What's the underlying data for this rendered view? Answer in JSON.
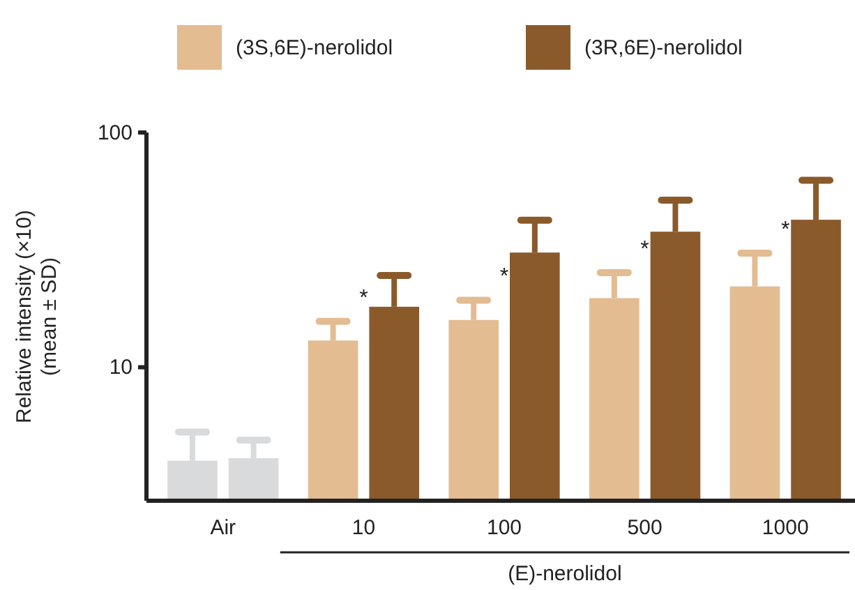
{
  "chart_data": {
    "type": "bar",
    "ylabel": "Relative intensity (×10)\n(mean ± SD)",
    "xlabel": "(E)-nerolidol",
    "log": true,
    "ylim": [
      2.7,
      100
    ],
    "yticks": [
      10,
      100
    ],
    "legend": "top",
    "categories": [
      "Air",
      "10",
      "100",
      "500",
      "1000"
    ],
    "series": [
      {
        "name": "(3S,6E)-nerolidol",
        "color": "#e3bc92",
        "colors": [
          "#d9dadb",
          "#e3bc92",
          "#e3bc92",
          "#e3bc92",
          "#e3bc92"
        ],
        "values": [
          4.0,
          13.0,
          15.9,
          19.7,
          22.1
        ],
        "errors": [
          [
            4.0,
            5.3
          ],
          [
            13.0,
            15.7
          ],
          [
            15.9,
            19.3
          ],
          [
            19.7,
            25.3
          ],
          [
            22.1,
            30.6
          ]
        ]
      },
      {
        "name": "(3R,6E)-nerolidol",
        "color": "#8b5a2b",
        "colors": [
          "#d9dadb",
          "#8b5a2b",
          "#8b5a2b",
          "#8b5a2b",
          "#8b5a2b"
        ],
        "values": [
          4.1,
          18.1,
          30.8,
          37.8,
          42.5
        ],
        "errors": [
          [
            4.1,
            4.9
          ],
          [
            18.1,
            24.6
          ],
          [
            30.8,
            42.3
          ],
          [
            37.8,
            51.5
          ],
          [
            42.5,
            62.6
          ]
        ]
      }
    ],
    "annotations": [
      "*",
      "*",
      "*",
      "*"
    ]
  }
}
